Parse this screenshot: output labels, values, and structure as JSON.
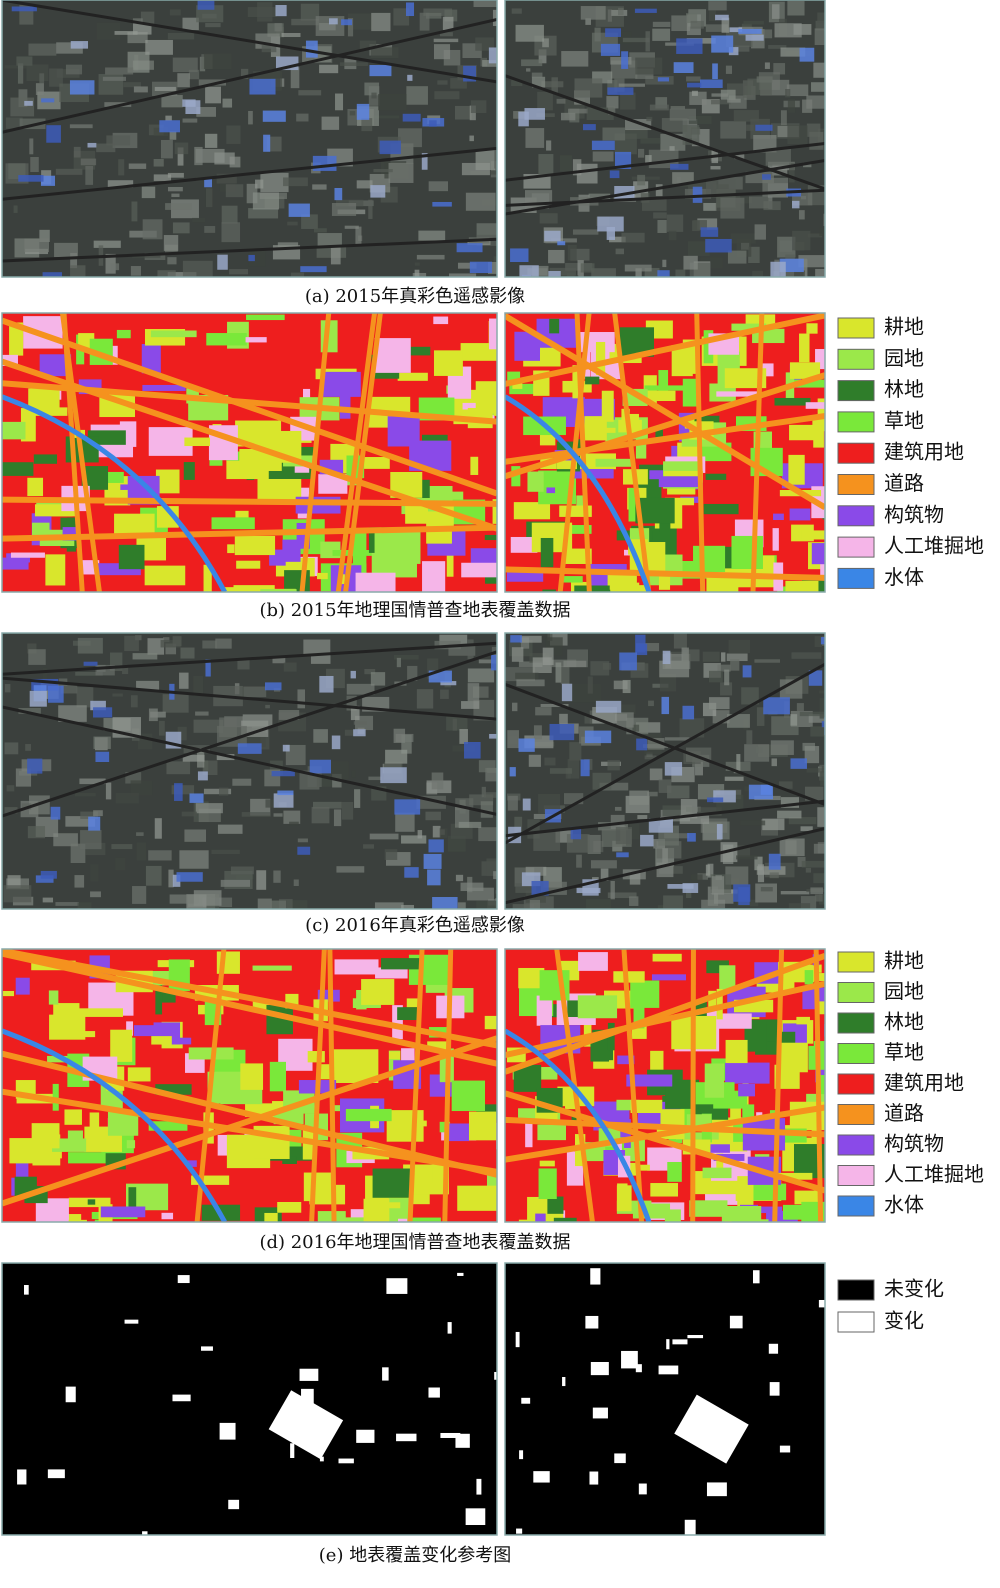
{
  "panels": [
    {
      "caption": "(a) 2015年真彩色遥感影像"
    },
    {
      "caption": "(b) 2015年地理国情普查地表覆盖数据",
      "legend": [
        {
          "label": "耕地",
          "color": "#d9e62c"
        },
        {
          "label": "园地",
          "color": "#9be84a"
        },
        {
          "label": "林地",
          "color": "#2f7d2a"
        },
        {
          "label": "草地",
          "color": "#7ae83a"
        },
        {
          "label": "建筑用地",
          "color": "#ee1e1e"
        },
        {
          "label": "道路",
          "color": "#f5921e"
        },
        {
          "label": "构筑物",
          "color": "#8a4ae8"
        },
        {
          "label": "人工堆掘地",
          "color": "#f5b5e8"
        },
        {
          "label": "水体",
          "color": "#3a86e6"
        }
      ]
    },
    {
      "caption": "(c) 2016年真彩色遥感影像"
    },
    {
      "caption": "(d) 2016年地理国情普查地表覆盖数据",
      "legend": [
        {
          "label": "耕地",
          "color": "#d9e62c"
        },
        {
          "label": "园地",
          "color": "#9be84a"
        },
        {
          "label": "林地",
          "color": "#2f7d2a"
        },
        {
          "label": "草地",
          "color": "#7ae83a"
        },
        {
          "label": "建筑用地",
          "color": "#ee1e1e"
        },
        {
          "label": "道路",
          "color": "#f5921e"
        },
        {
          "label": "构筑物",
          "color": "#8a4ae8"
        },
        {
          "label": "人工堆掘地",
          "color": "#f5b5e8"
        },
        {
          "label": "水体",
          "color": "#3a86e6"
        }
      ]
    },
    {
      "caption": "(e) 地表覆盖变化参考图",
      "legend": [
        {
          "label": "未变化",
          "color": "#000000"
        },
        {
          "label": "变化",
          "color": "#ffffff"
        }
      ]
    }
  ]
}
